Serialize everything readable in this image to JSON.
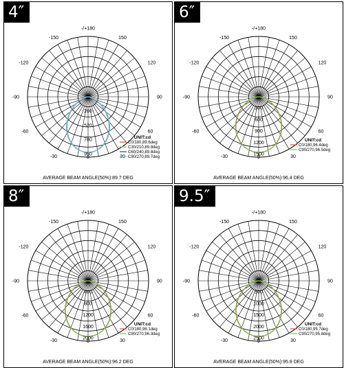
{
  "chart_data": [
    {
      "type": "polar",
      "panel_label": "4″",
      "angle_labels": [
        "-/+180",
        "150",
        "120",
        "90",
        "60",
        "30",
        "0",
        "-30",
        "-60",
        "-90",
        "-120",
        "-150"
      ],
      "radial_labels": [
        "260",
        "520",
        "780",
        "950"
      ],
      "unit_label": "UNIT:cd",
      "max": 1300,
      "series": [
        {
          "name": "C0/180,89.6deg",
          "color": "#e8433a",
          "beam_angle": 89.6
        },
        {
          "name": "C30/210,89.8deg",
          "color": "#7cc04a",
          "beam_angle": 89.8
        },
        {
          "name": "C60/240,89.8deg",
          "color": "#2e3f8f",
          "beam_angle": 89.8
        },
        {
          "name": "C90/270,89.7deg",
          "color": "#79c6e8",
          "beam_angle": 89.7
        }
      ],
      "beam_text": "AVERAGE BEAM ANGLE(50%):89.7 DEG"
    },
    {
      "type": "polar",
      "panel_label": "6″",
      "angle_labels": [
        "-/+180",
        "150",
        "120",
        "90",
        "60",
        "30",
        "0",
        "-30",
        "-60",
        "-90",
        "-120",
        "-150"
      ],
      "radial_labels": [
        "300",
        "600",
        "900",
        "1200",
        "1500"
      ],
      "unit_label": "UNIT:cd",
      "max": 1800,
      "series": [
        {
          "name": "C0/180,96.4deg",
          "color": "#e8433a",
          "beam_angle": 96.4
        },
        {
          "name": "C90/270,96.5deg",
          "color": "#7cc04a",
          "beam_angle": 96.5
        }
      ],
      "beam_text": "AVERAGE BEAM ANGLE(50%):96.4 DEG"
    },
    {
      "type": "polar",
      "panel_label": "8″",
      "angle_labels": [
        "-/+180",
        "150",
        "120",
        "90",
        "60",
        "30",
        "0",
        "-30",
        "-60",
        "-90",
        "-120",
        "-150"
      ],
      "radial_labels": [
        "400",
        "800",
        "1200",
        "1600",
        "2000"
      ],
      "unit_label": "UNIT:cd",
      "max": 2400,
      "series": [
        {
          "name": "C0/180,96.1deg",
          "color": "#e8433a",
          "beam_angle": 96.1
        },
        {
          "name": "C90/270,96.3deg",
          "color": "#7cc04a",
          "beam_angle": 96.3
        }
      ],
      "beam_text": "AVERAGE BEAM ANGLE(50%):96.2 DEG"
    },
    {
      "type": "polar",
      "panel_label": "9.5″",
      "angle_labels": [
        "-/+180",
        "150",
        "120",
        "90",
        "60",
        "30",
        "0",
        "-30",
        "-60",
        "-90",
        "-120",
        "-150"
      ],
      "radial_labels": [
        "500",
        "1000",
        "1500",
        "2000",
        "2500"
      ],
      "unit_label": "UNIT:cd",
      "max": 3000,
      "series": [
        {
          "name": "C0/180,95.7deg",
          "color": "#e8433a",
          "beam_angle": 95.7
        },
        {
          "name": "C90/270,95.8deg",
          "color": "#7cc04a",
          "beam_angle": 95.8
        }
      ],
      "beam_text": "AVERAGE BEAM ANGLE(50%):95.8 DEG"
    }
  ]
}
